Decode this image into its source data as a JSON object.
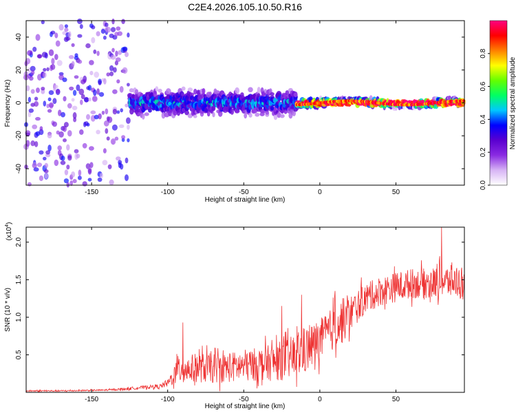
{
  "chart_data": [
    {
      "type": "heatmap",
      "title": "C2E4.2026.105.10.50.R16",
      "xlabel": "Height of straight line (km)",
      "ylabel": "Frequency (Hz)",
      "xlim": [
        -193,
        95
      ],
      "ylim": [
        -50,
        50
      ],
      "xticks": [
        -150,
        -100,
        -50,
        0,
        50
      ],
      "yticks": [
        -40,
        -20,
        0,
        20,
        40
      ],
      "colorbar": {
        "label": "Normalized spectral amplitude",
        "range": [
          0.0,
          1.0
        ],
        "ticks": [
          0.0,
          0.2,
          0.4,
          0.6,
          0.8
        ],
        "tick_labels": [
          "0.0",
          "0.2",
          "0.4",
          "0.6",
          "0.8"
        ],
        "colors": [
          "#ffffff",
          "#d7b4f5",
          "#8a2be2",
          "#5a00d0",
          "#0000ff",
          "#00c8ff",
          "#00ff64",
          "#64ff00",
          "#ffff00",
          "#ff8000",
          "#ff0000",
          "#ff0080"
        ]
      },
      "regions": [
        {
          "x_range": [
            -193,
            -125
          ],
          "description_level": "diffuse",
          "freq_spread": 50
        },
        {
          "x_range": [
            -125,
            -15
          ],
          "description_level": "banded",
          "freq_spread": 10
        },
        {
          "x_range": [
            -15,
            95
          ],
          "description_level": "narrow",
          "freq_spread": 3
        }
      ]
    },
    {
      "type": "line",
      "title": "",
      "xlabel": "Height of straight line (km)",
      "ylabel": "SNR (10 * v/v)",
      "y_multiplier": "(x10",
      "y_multiplier_exp": "4",
      "y_multiplier_close": ")",
      "xlim": [
        -193,
        95
      ],
      "ylim": [
        0,
        2.2
      ],
      "xticks": [
        -150,
        -100,
        -50,
        0,
        50
      ],
      "yticks": [
        0.5,
        1.0,
        1.5,
        2.0
      ],
      "ytick_labels": [
        "0.5",
        "1.0",
        "1.5",
        "2.0"
      ],
      "series": [
        {
          "name": "SNR",
          "color": "#ee3333",
          "x": [
            -193,
            -170,
            -140,
            -125,
            -115,
            -105,
            -100,
            -95,
            -91,
            -88,
            -80,
            -70,
            -60,
            -50,
            -40,
            -30,
            -20,
            -15,
            -10,
            -5,
            0,
            5,
            10,
            15,
            20,
            25,
            30,
            40,
            50,
            60,
            70,
            80,
            90,
            95
          ],
          "mean": [
            0.02,
            0.02,
            0.03,
            0.05,
            0.07,
            0.08,
            0.12,
            0.25,
            0.35,
            0.3,
            0.33,
            0.32,
            0.33,
            0.35,
            0.38,
            0.4,
            0.45,
            0.5,
            0.55,
            0.62,
            0.7,
            0.78,
            0.88,
            0.95,
            1.05,
            1.15,
            1.25,
            1.35,
            1.4,
            1.45,
            1.45,
            1.47,
            1.48,
            1.45
          ],
          "noise": [
            0.01,
            0.01,
            0.01,
            0.02,
            0.02,
            0.03,
            0.05,
            0.15,
            0.25,
            0.18,
            0.2,
            0.2,
            0.2,
            0.22,
            0.22,
            0.25,
            0.28,
            0.3,
            0.32,
            0.3,
            0.28,
            0.28,
            0.3,
            0.3,
            0.25,
            0.22,
            0.2,
            0.2,
            0.2,
            0.2,
            0.2,
            0.22,
            0.22,
            0.25
          ]
        }
      ],
      "spikes": [
        {
          "x": -90,
          "y": 0.93
        },
        {
          "x": -25,
          "y": 1.15
        },
        {
          "x": -12,
          "y": 1.3
        },
        {
          "x": 10,
          "y": 1.35
        },
        {
          "x": 80,
          "y": 2.2
        }
      ]
    }
  ]
}
